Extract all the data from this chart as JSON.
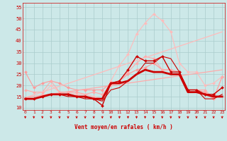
{
  "background_color": "#cce8e8",
  "grid_color": "#aacccc",
  "xlabel": "Vent moyen/en rafales ( km/h )",
  "xlabel_color": "#cc0000",
  "tick_color": "#cc0000",
  "x_ticks": [
    0,
    1,
    2,
    3,
    4,
    5,
    6,
    7,
    8,
    9,
    10,
    11,
    12,
    13,
    14,
    15,
    16,
    17,
    18,
    19,
    20,
    21,
    22,
    23
  ],
  "y_ticks": [
    10,
    15,
    20,
    25,
    30,
    35,
    40,
    45,
    50,
    55
  ],
  "ylim": [
    9,
    57
  ],
  "xlim": [
    -0.3,
    23.3
  ],
  "lines": [
    {
      "x": [
        0,
        1,
        2,
        3,
        4,
        5,
        6,
        7,
        8,
        9,
        10,
        11,
        12,
        13,
        14,
        15,
        16,
        17,
        18,
        19,
        20,
        21,
        22,
        23
      ],
      "y": [
        14.5,
        14,
        16,
        20,
        17,
        17,
        16,
        16,
        15,
        14,
        22,
        29,
        34,
        43,
        48,
        52,
        49,
        44,
        30,
        26,
        26,
        20,
        21,
        24
      ],
      "color": "#ffbbbb",
      "lw": 0.8,
      "marker": "D",
      "ms": 2.0
    },
    {
      "x": [
        0,
        1,
        2,
        3,
        4,
        5,
        6,
        7,
        8,
        9,
        10,
        11,
        12,
        13,
        14,
        15,
        16,
        17,
        18,
        19,
        20,
        21,
        22,
        23
      ],
      "y": [
        26,
        19,
        21,
        22,
        21,
        19,
        18,
        18,
        18,
        18,
        21,
        22,
        25,
        27,
        28,
        30,
        27,
        27,
        26,
        18,
        18,
        17,
        14,
        24
      ],
      "color": "#ff9999",
      "lw": 0.8,
      "marker": "D",
      "ms": 2.0
    },
    {
      "x": [
        0,
        1,
        2,
        3,
        4,
        5,
        6,
        7,
        8,
        9,
        10,
        11,
        12,
        13,
        14,
        15,
        16,
        17,
        18,
        19,
        20,
        21,
        22,
        23
      ],
      "y": [
        18,
        17,
        17,
        22,
        17,
        17,
        17,
        16,
        17,
        16,
        20,
        22,
        26,
        30,
        33,
        32,
        27,
        27,
        26,
        18,
        18,
        18,
        14,
        24
      ],
      "color": "#ffaaaa",
      "lw": 0.8,
      "marker": "D",
      "ms": 2.0
    },
    {
      "x": [
        0,
        23
      ],
      "y": [
        14.5,
        44
      ],
      "color": "#ffbbbb",
      "lw": 0.9,
      "marker": null,
      "ms": 0,
      "linestyle": "-"
    },
    {
      "x": [
        0,
        23
      ],
      "y": [
        14.5,
        27
      ],
      "color": "#ffaaaa",
      "lw": 0.9,
      "marker": null,
      "ms": 0,
      "linestyle": "-"
    },
    {
      "x": [
        0,
        1,
        2,
        3,
        4,
        5,
        6,
        7,
        8,
        9,
        10,
        11,
        12,
        13,
        14,
        15,
        16,
        17,
        18,
        19,
        20,
        21,
        22,
        23
      ],
      "y": [
        14,
        14,
        15,
        16,
        16,
        16,
        15,
        15,
        14,
        11,
        21,
        22,
        27,
        33,
        31,
        31,
        33,
        26,
        26,
        18,
        18,
        16,
        16,
        19
      ],
      "color": "#cc0000",
      "lw": 1.0,
      "marker": "D",
      "ms": 2.0
    },
    {
      "x": [
        0,
        1,
        2,
        3,
        4,
        5,
        6,
        7,
        8,
        9,
        10,
        11,
        12,
        13,
        14,
        15,
        16,
        17,
        18,
        19,
        20,
        21,
        22,
        23
      ],
      "y": [
        14,
        14,
        15,
        16,
        16,
        15,
        15,
        14,
        14,
        13,
        18,
        19,
        22,
        25,
        30,
        30,
        33,
        32,
        26,
        18,
        18,
        14,
        14,
        16
      ],
      "color": "#cc0000",
      "lw": 0.8,
      "marker": null,
      "ms": 0,
      "linestyle": "-"
    },
    {
      "x": [
        0,
        1,
        2,
        3,
        4,
        5,
        6,
        7,
        8,
        9,
        10,
        11,
        12,
        13,
        14,
        15,
        16,
        17,
        18,
        19,
        20,
        21,
        22,
        23
      ],
      "y": [
        14,
        14,
        15,
        16,
        16,
        16,
        15,
        15,
        14,
        14,
        21,
        21,
        22,
        25,
        27,
        26,
        26,
        25,
        25,
        17,
        17,
        16,
        15,
        15
      ],
      "color": "#cc0000",
      "lw": 2.0,
      "marker": null,
      "ms": 0,
      "linestyle": "-"
    }
  ]
}
